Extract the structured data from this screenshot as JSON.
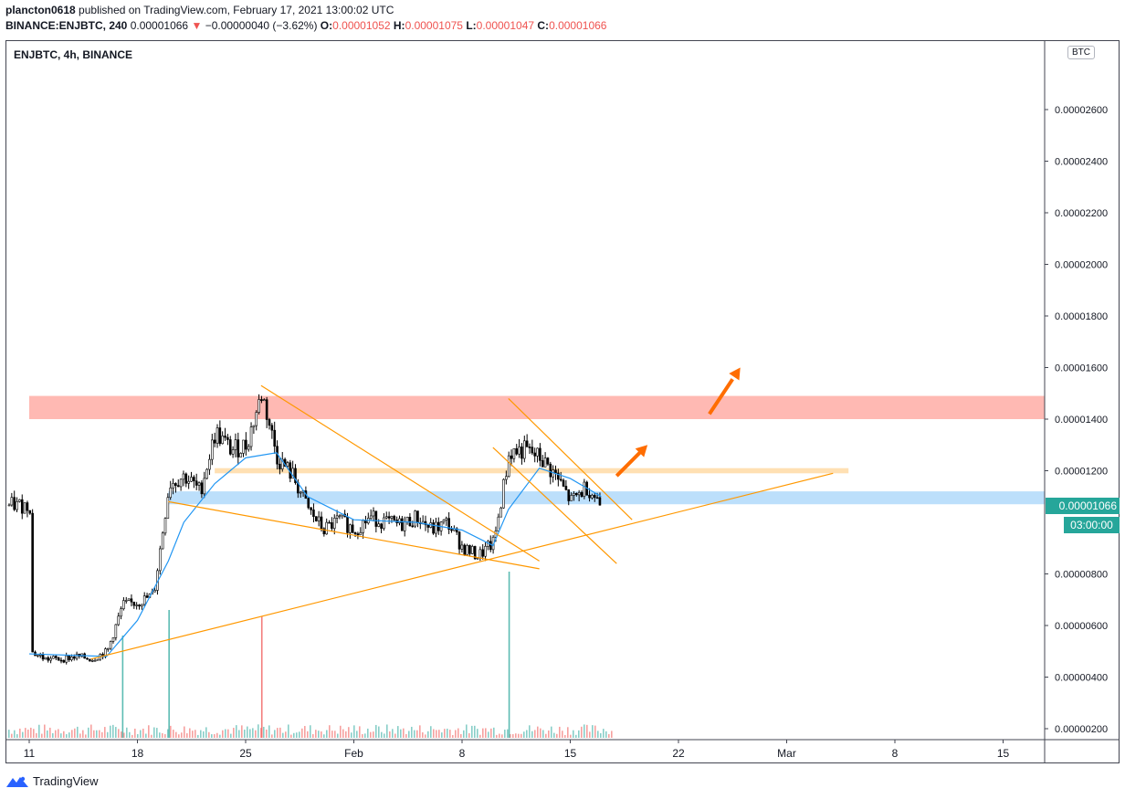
{
  "header": {
    "publisher": "plancton0618",
    "published_text": "published on TradingView.com, February 17, 2021 13:00:02 UTC",
    "symbol_interval": "BINANCE:ENJBTC, 240",
    "last": "0.00001066",
    "change_arrow": "▼",
    "change": "−0.00000040 (−3.62%)",
    "o_label": "O:",
    "o_value": "0.00001052",
    "h_label": "H:",
    "h_value": "0.00001075",
    "l_label": "L:",
    "l_value": "0.00001047",
    "c_label": "C:",
    "c_value": "0.00001066"
  },
  "chart_label": "ENJBTC, 4h, BINANCE",
  "currency_badge": "BTC",
  "price_badge": "0.00001066",
  "time_badge": "03:00:00",
  "footer": {
    "brand": "TradingView",
    "logo_icon": "tradingview-logo-icon"
  },
  "colors": {
    "up_candle": "#ffffff",
    "down_candle": "#000000",
    "ema": "#2196f3",
    "trendline": "#ff9800",
    "arrow": "#ff6d00",
    "resistance_zone": "#ff8a80",
    "mid_zone": "#ffcc80",
    "support_zone": "#90caf9",
    "volume_up": "#26a69a",
    "volume_down": "#ef5350",
    "badge": "#26a69a"
  },
  "chart_data": {
    "type": "candlestick",
    "title": "ENJBTC, 4h, BINANCE",
    "x_ticks": [
      "11",
      "18",
      "25",
      "Feb",
      "8",
      "15",
      "22",
      "Mar",
      "8",
      "15"
    ],
    "y_ticks": [
      "0.00000200",
      "0.00000400",
      "0.00000600",
      "0.00000800",
      "0.00001200",
      "0.00001400",
      "0.00001600",
      "0.00001800",
      "0.00002000",
      "0.00002200",
      "0.00002400",
      "0.00002600"
    ],
    "ylim": [
      1.8e-06,
      2.82e-05
    ],
    "last_price": 1.066e-05,
    "price_path": [
      [
        "2021-01-11",
        5e-06
      ],
      [
        "2021-01-12",
        4.7e-06
      ],
      [
        "2021-01-13",
        4.7e-06
      ],
      [
        "2021-01-14",
        4.8e-06
      ],
      [
        "2021-01-15",
        4.7e-06
      ],
      [
        "2021-01-16",
        5e-06
      ],
      [
        "2021-01-17",
        6.8e-06
      ],
      [
        "2021-01-18",
        6.9e-06
      ],
      [
        "2021-01-19",
        7.2e-06
      ],
      [
        "2021-01-20",
        1.15e-05
      ],
      [
        "2021-01-21",
        1.18e-05
      ],
      [
        "2021-01-22",
        1.12e-05
      ],
      [
        "2021-01-23",
        1.35e-05
      ],
      [
        "2021-01-24",
        1.28e-05
      ],
      [
        "2021-01-25",
        1.3e-05
      ],
      [
        "2021-01-26",
        1.5e-05
      ],
      [
        "2021-01-27",
        1.25e-05
      ],
      [
        "2021-01-28",
        1.18e-05
      ],
      [
        "2021-01-29",
        1.05e-05
      ],
      [
        "2021-01-30",
        9.7e-06
      ],
      [
        "2021-01-31",
        1.01e-05
      ],
      [
        "2021-02-01",
        9.7e-06
      ],
      [
        "2021-02-02",
        1.02e-05
      ],
      [
        "2021-02-03",
        1e-05
      ],
      [
        "2021-02-04",
        9.9e-06
      ],
      [
        "2021-02-05",
        1.02e-05
      ],
      [
        "2021-02-06",
        9.7e-06
      ],
      [
        "2021-02-07",
        1e-05
      ],
      [
        "2021-02-08",
        9e-06
      ],
      [
        "2021-02-09",
        8.7e-06
      ],
      [
        "2021-02-10",
        9.2e-06
      ],
      [
        "2021-02-11",
        1.27e-05
      ],
      [
        "2021-02-12",
        1.28e-05
      ],
      [
        "2021-02-13",
        1.25e-05
      ],
      [
        "2021-02-14",
        1.18e-05
      ],
      [
        "2021-02-15",
        1.08e-05
      ],
      [
        "2021-02-16",
        1.14e-05
      ],
      [
        "2021-02-17",
        1.066e-05
      ]
    ],
    "ema_path": [
      [
        "2021-01-11",
        4.9e-06
      ],
      [
        "2021-01-16",
        4.8e-06
      ],
      [
        "2021-01-18",
        6.2e-06
      ],
      [
        "2021-01-20",
        8.5e-06
      ],
      [
        "2021-01-21",
        1e-05
      ],
      [
        "2021-01-23",
        1.15e-05
      ],
      [
        "2021-01-25",
        1.25e-05
      ],
      [
        "2021-01-27",
        1.27e-05
      ],
      [
        "2021-01-29",
        1.1e-05
      ],
      [
        "2021-02-01",
        1.01e-05
      ],
      [
        "2021-02-05",
        1e-05
      ],
      [
        "2021-02-08",
        9.7e-06
      ],
      [
        "2021-02-10",
        9.1e-06
      ],
      [
        "2021-02-11",
        1.05e-05
      ],
      [
        "2021-02-13",
        1.21e-05
      ],
      [
        "2021-02-15",
        1.17e-05
      ],
      [
        "2021-02-17",
        1.1e-05
      ]
    ],
    "zones": [
      {
        "from": 1.4e-05,
        "to": 1.49e-05,
        "start": "2021-01-11",
        "color": "resistance_zone"
      },
      {
        "from": 1.19e-05,
        "to": 1.21e-05,
        "start": "2021-01-23",
        "end": "2021-03-05",
        "color": "mid_zone"
      },
      {
        "from": 1.07e-05,
        "to": 1.12e-05,
        "start": "2021-01-20",
        "color": "support_zone"
      }
    ],
    "trendlines": [
      {
        "from": [
          "2021-01-15",
          4.7e-06
        ],
        "to": [
          "2021-03-04",
          1.19e-05
        ]
      },
      {
        "from": [
          "2021-01-20",
          1.08e-05
        ],
        "to": [
          "2021-02-13",
          8.2e-06
        ]
      },
      {
        "from": [
          "2021-01-26",
          1.53e-05
        ],
        "to": [
          "2021-02-13",
          8.5e-06
        ]
      },
      {
        "from": [
          "2021-02-11",
          1.48e-05
        ],
        "to": [
          "2021-02-19",
          1.01e-05
        ]
      },
      {
        "from": [
          "2021-02-10",
          1.29e-05
        ],
        "to": [
          "2021-02-18",
          8.4e-06
        ]
      }
    ],
    "arrows": [
      {
        "from": [
          "2021-02-18",
          1.18e-05
        ],
        "to": [
          "2021-02-20",
          1.3e-05
        ]
      },
      {
        "from": [
          "2021-02-24",
          1.42e-05
        ],
        "to": [
          "2021-02-26",
          1.6e-05
        ]
      }
    ],
    "volume_spikes": [
      [
        "2021-01-17",
        "up",
        0.8
      ],
      [
        "2021-01-20",
        "up",
        1.0
      ],
      [
        "2021-01-26",
        "down",
        0.95
      ],
      [
        "2021-02-11",
        "up",
        1.3
      ]
    ]
  }
}
